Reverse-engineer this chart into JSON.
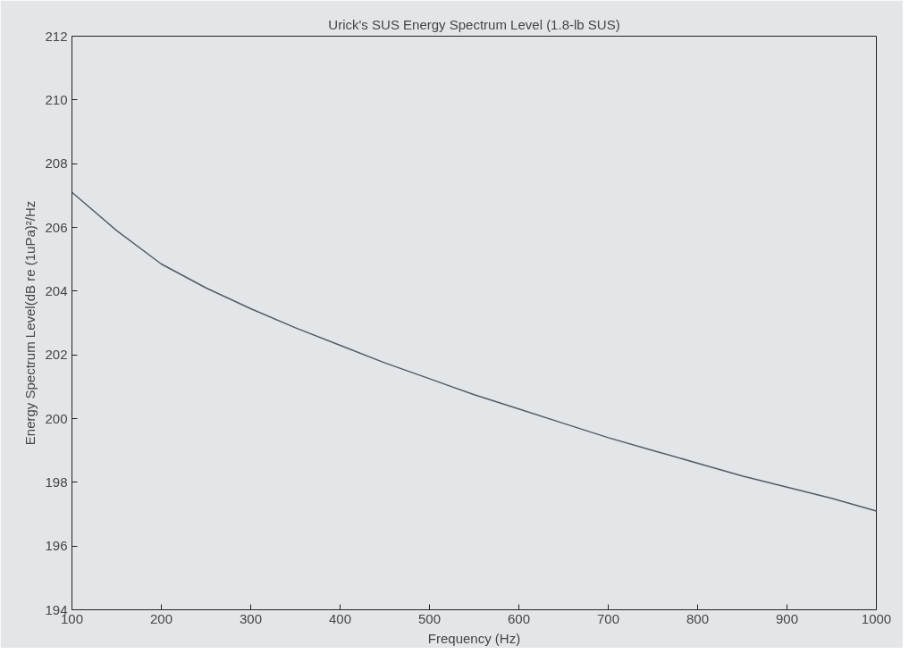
{
  "chart_data": {
    "type": "line",
    "title": "Urick's SUS Energy Spectrum Level (1.8-lb SUS)",
    "xlabel": "Frequency (Hz)",
    "ylabel": "Energy Spectrum Level(dB re (1uPa)²/Hz",
    "x": [
      100,
      150,
      200,
      250,
      300,
      350,
      400,
      450,
      500,
      550,
      600,
      650,
      700,
      750,
      800,
      850,
      900,
      950,
      1000
    ],
    "series": [
      {
        "color": "#555a66",
        "values": [
          207.1,
          205.9,
          204.85,
          204.1,
          203.45,
          202.85,
          202.3,
          201.75,
          201.25,
          200.75,
          200.3,
          199.85,
          199.4,
          199.0,
          198.6,
          198.2,
          197.85,
          197.5,
          197.1
        ]
      }
    ],
    "xlim": [
      100,
      1000
    ],
    "ylim": [
      194,
      212
    ],
    "xticks": [
      100,
      200,
      300,
      400,
      500,
      600,
      700,
      800,
      900,
      1000
    ],
    "yticks": [
      194,
      196,
      198,
      200,
      202,
      204,
      206,
      208,
      210,
      212
    ],
    "grid": false,
    "marker": "none",
    "line_style": "solid"
  }
}
